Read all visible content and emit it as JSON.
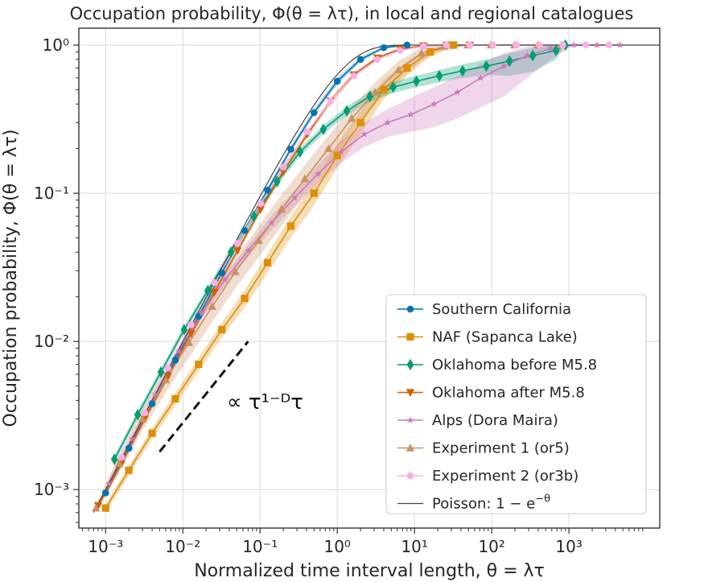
{
  "chart_data": {
    "type": "line",
    "title": "Occupation probability, Φ(θ = λτ), in local and regional catalogues",
    "xlabel": "Normalized time interval length, θ = λτ",
    "ylabel": "Occupation probability, Φ(θ = λτ)",
    "xscale": "log",
    "yscale": "log",
    "xlim": [
      0.00045,
      15000
    ],
    "ylim": [
      0.00055,
      1.3
    ],
    "grid": true,
    "legend_position": "lower-right",
    "xtick_labels": [
      "10⁻³",
      "10⁻²",
      "10⁻¹",
      "10⁰",
      "10¹",
      "10²",
      "10³"
    ],
    "ytick_labels": [
      "10⁻³",
      "10⁻²",
      "10⁻¹",
      "10⁰"
    ],
    "annotation": {
      "text": "∝ τ¹⁻ᴰτ",
      "line_x": [
        0.005,
        0.07
      ],
      "line_y": [
        0.0018,
        0.01
      ]
    },
    "series": [
      {
        "name": "Southern California",
        "color": "#0173b2",
        "marker": "circle",
        "x": [
          0.001,
          0.002,
          0.004,
          0.008,
          0.016,
          0.032,
          0.063,
          0.125,
          0.25,
          0.5,
          1,
          2,
          4,
          8
        ],
        "y": [
          0.00095,
          0.0019,
          0.0038,
          0.0075,
          0.0148,
          0.029,
          0.056,
          0.105,
          0.198,
          0.35,
          0.57,
          0.8,
          0.96,
          1.0
        ],
        "band_lower": [
          0.0009,
          0.0018,
          0.0036,
          0.0071,
          0.014,
          0.0275,
          0.053,
          0.1,
          0.188,
          0.335,
          0.54,
          0.77,
          0.94,
          0.99
        ],
        "band_upper": [
          0.001,
          0.002,
          0.004,
          0.0079,
          0.0156,
          0.0305,
          0.059,
          0.11,
          0.208,
          0.37,
          0.6,
          0.83,
          0.98,
          1.0
        ]
      },
      {
        "name": "NAF (Sapanca Lake)",
        "color": "#de8f05",
        "marker": "square",
        "x": [
          0.001,
          0.002,
          0.004,
          0.008,
          0.016,
          0.032,
          0.063,
          0.125,
          0.25,
          0.5,
          1,
          2,
          4,
          8,
          16,
          32
        ],
        "y": [
          0.00075,
          0.00135,
          0.0024,
          0.0041,
          0.007,
          0.012,
          0.0195,
          0.034,
          0.06,
          0.1,
          0.18,
          0.3,
          0.5,
          0.7,
          0.9,
          1.0
        ],
        "band_lower": [
          0.0007,
          0.00125,
          0.0022,
          0.0037,
          0.0063,
          0.0106,
          0.017,
          0.029,
          0.05,
          0.083,
          0.148,
          0.25,
          0.43,
          0.62,
          0.85,
          0.99
        ],
        "band_upper": [
          0.0008,
          0.00145,
          0.0026,
          0.0045,
          0.0077,
          0.0134,
          0.0222,
          0.039,
          0.07,
          0.118,
          0.215,
          0.36,
          0.58,
          0.78,
          0.95,
          1.0
        ]
      },
      {
        "name": "Oklahoma before M5.8",
        "color": "#029e73",
        "marker": "diamond",
        "x": [
          0.0013,
          0.0026,
          0.0052,
          0.0104,
          0.021,
          0.042,
          0.083,
          0.166,
          0.33,
          0.66,
          1.33,
          2.65,
          5.3,
          10.6,
          21,
          42,
          85,
          170,
          340,
          680,
          900
        ],
        "y": [
          0.0016,
          0.0032,
          0.0062,
          0.012,
          0.022,
          0.04,
          0.07,
          0.12,
          0.19,
          0.27,
          0.36,
          0.45,
          0.52,
          0.57,
          0.62,
          0.67,
          0.72,
          0.78,
          0.85,
          0.92,
          1.0
        ],
        "band_lower": [
          0.0015,
          0.003,
          0.0058,
          0.0113,
          0.0207,
          0.0375,
          0.0655,
          0.112,
          0.178,
          0.252,
          0.335,
          0.415,
          0.475,
          0.52,
          0.56,
          0.6,
          0.63,
          0.62,
          0.66,
          0.8,
          1.0
        ],
        "band_upper": [
          0.0017,
          0.0034,
          0.0066,
          0.0127,
          0.0233,
          0.0425,
          0.0745,
          0.128,
          0.202,
          0.288,
          0.385,
          0.485,
          0.565,
          0.62,
          0.68,
          0.74,
          0.8,
          0.88,
          0.96,
          1.0,
          1.0
        ]
      },
      {
        "name": "Oklahoma after M5.8",
        "color": "#d55e00",
        "marker": "triangle-down",
        "x": [
          0.0008,
          0.0016,
          0.0032,
          0.0064,
          0.0128,
          0.0256,
          0.051,
          0.102,
          0.2,
          0.41,
          0.82,
          1.64,
          3.3,
          6.5,
          13,
          26,
          52
        ],
        "y": [
          0.00078,
          0.0015,
          0.003,
          0.0058,
          0.0113,
          0.0215,
          0.041,
          0.078,
          0.14,
          0.25,
          0.42,
          0.63,
          0.82,
          0.94,
          0.99,
          1.0,
          1.0
        ],
        "band_lower": [
          0.00074,
          0.00143,
          0.00286,
          0.0055,
          0.0107,
          0.0204,
          0.039,
          0.074,
          0.133,
          0.238,
          0.4,
          0.605,
          0.8,
          0.925,
          0.985,
          1.0,
          1.0
        ],
        "band_upper": [
          0.00082,
          0.00157,
          0.00314,
          0.0061,
          0.0119,
          0.0226,
          0.043,
          0.082,
          0.147,
          0.262,
          0.44,
          0.655,
          0.84,
          0.955,
          0.995,
          1.0,
          1.0
        ]
      },
      {
        "name": "Alps (Dora Maira)",
        "color": "#cc78bc",
        "marker": "star",
        "x": [
          0.0011,
          0.0022,
          0.0044,
          0.0088,
          0.0176,
          0.035,
          0.07,
          0.14,
          0.28,
          0.56,
          1.12,
          2.24,
          4.5,
          9,
          18,
          36,
          72,
          144,
          290,
          580,
          1160,
          2300,
          4600
        ],
        "y": [
          0.0011,
          0.0022,
          0.0044,
          0.0086,
          0.0155,
          0.026,
          0.041,
          0.063,
          0.093,
          0.135,
          0.19,
          0.25,
          0.3,
          0.34,
          0.4,
          0.48,
          0.6,
          0.72,
          0.85,
          0.95,
          1.0,
          1.0,
          1.0
        ],
        "band_lower": [
          0.00103,
          0.00205,
          0.0041,
          0.008,
          0.0144,
          0.0238,
          0.0372,
          0.056,
          0.081,
          0.116,
          0.16,
          0.205,
          0.24,
          0.26,
          0.28,
          0.32,
          0.38,
          0.45,
          0.6,
          0.8,
          1.0,
          1.0,
          1.0
        ],
        "band_upper": [
          0.00118,
          0.00235,
          0.0047,
          0.0092,
          0.0166,
          0.0282,
          0.0448,
          0.07,
          0.105,
          0.155,
          0.225,
          0.3,
          0.37,
          0.44,
          0.52,
          0.62,
          0.75,
          0.88,
          0.98,
          1.0,
          1.0,
          1.0,
          1.0
        ]
      },
      {
        "name": "Experiment 1 (or5)",
        "color": "#ca9161",
        "marker": "triangle-up",
        "x": [
          0.00075,
          0.0015,
          0.003,
          0.006,
          0.012,
          0.024,
          0.048,
          0.096,
          0.19,
          0.38,
          0.77,
          1.54,
          3.1,
          6.2,
          12.3,
          24.6,
          49,
          98,
          197,
          394,
          800
        ],
        "y": [
          0.00075,
          0.0015,
          0.003,
          0.0055,
          0.0098,
          0.0172,
          0.0295,
          0.048,
          0.078,
          0.125,
          0.2,
          0.32,
          0.48,
          0.68,
          0.88,
          0.98,
          1.0,
          1.0,
          1.0,
          1.0,
          1.0
        ],
        "band_lower": [
          0.0007,
          0.0013,
          0.0025,
          0.0045,
          0.0078,
          0.0135,
          0.0228,
          0.037,
          0.06,
          0.098,
          0.16,
          0.26,
          0.4,
          0.58,
          0.78,
          0.92,
          0.99,
          1.0,
          1.0,
          1.0,
          1.0
        ],
        "band_upper": [
          0.0008,
          0.0017,
          0.0035,
          0.0066,
          0.012,
          0.0212,
          0.0365,
          0.06,
          0.098,
          0.155,
          0.245,
          0.38,
          0.56,
          0.78,
          0.96,
          1.0,
          1.0,
          1.0,
          1.0,
          1.0,
          1.0
        ]
      },
      {
        "name": "Experiment 2 (or3b)",
        "color": "#fbafe4",
        "marker": "circle",
        "x": [
          0.0016,
          0.0032,
          0.0064,
          0.0128,
          0.0256,
          0.051,
          0.102,
          0.2,
          0.41,
          0.82,
          1.64,
          3.3,
          6.5,
          13,
          26,
          52,
          104,
          208,
          416,
          832,
          1660,
          3300
        ],
        "y": [
          0.00165,
          0.0033,
          0.0066,
          0.013,
          0.025,
          0.046,
          0.085,
          0.15,
          0.26,
          0.42,
          0.62,
          0.8,
          0.92,
          0.98,
          1.0,
          1.0,
          1.0,
          1.0,
          1.0,
          1.0,
          1.0,
          1.0
        ]
      },
      {
        "name": "Poisson: 1 − e^(−θ)",
        "legend_label": "Poisson: 1 − e",
        "legend_exp": "−θ",
        "color": "#444444",
        "marker": "none",
        "x_range": [
          0.0007,
          15000
        ]
      }
    ]
  }
}
